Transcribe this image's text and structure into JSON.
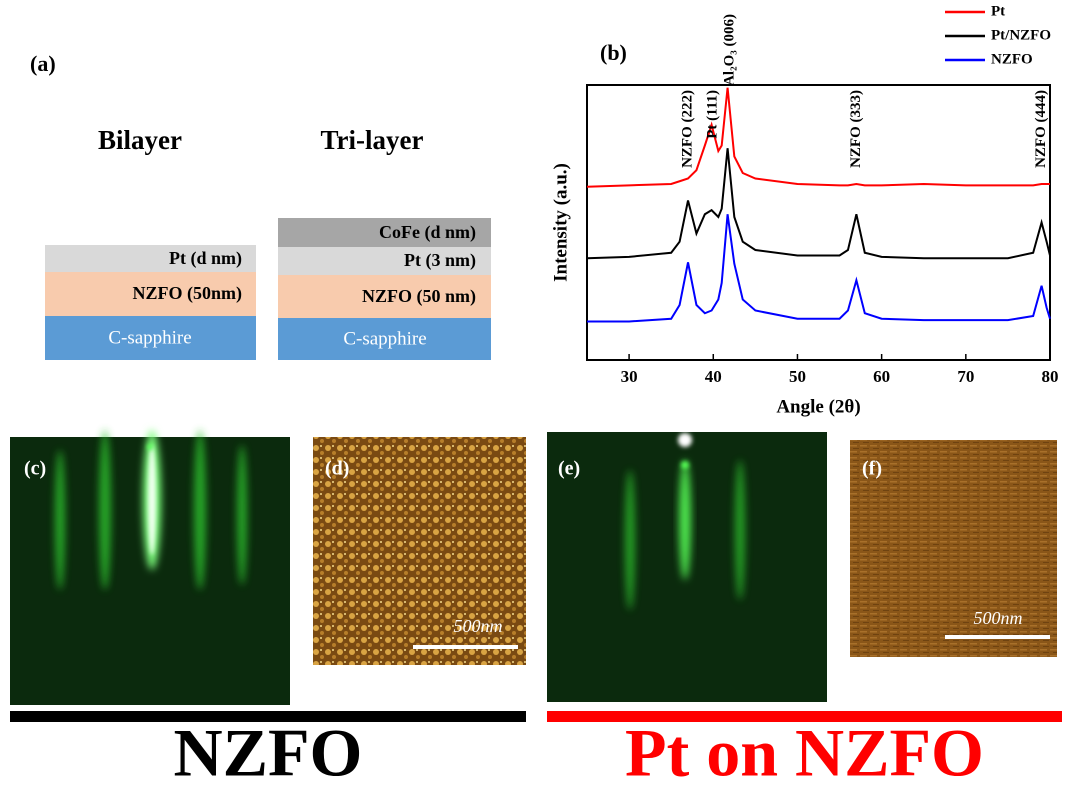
{
  "panel_a": {
    "label": "(a)",
    "bilayer": {
      "title": "Bilayer",
      "layers": [
        "Pt (d nm)",
        "NZFO (50nm)",
        "C-sapphire"
      ]
    },
    "trilayer": {
      "title": "Tri-layer",
      "layers": [
        "CoFe (d nm)",
        "Pt (3 nm)",
        "NZFO (50 nm)",
        "C-sapphire"
      ]
    }
  },
  "chart_data": {
    "type": "line",
    "label": "(b)",
    "x_label": "Angle (2θ)",
    "y_label": "Intensity (a.u.)",
    "x": [
      25,
      30,
      35,
      36,
      37,
      38,
      39,
      39.8,
      40.6,
      41,
      41.7,
      42.5,
      43.5,
      45,
      50,
      55,
      56,
      57,
      58,
      60,
      65,
      70,
      75,
      78,
      79,
      79.6,
      80
    ],
    "series": [
      {
        "name": "Pt",
        "color": "#ff0000",
        "values": [
          6.3,
          6.35,
          6.4,
          6.5,
          6.6,
          6.9,
          7.8,
          8.55,
          7.6,
          7.8,
          9.9,
          7.4,
          6.8,
          6.6,
          6.4,
          6.35,
          6.35,
          6.4,
          6.35,
          6.35,
          6.4,
          6.35,
          6.35,
          6.35,
          6.4,
          6.4,
          6.4
        ]
      },
      {
        "name": "Pt/NZFO",
        "color": "#000000",
        "values": [
          3.7,
          3.75,
          3.9,
          4.3,
          5.8,
          4.6,
          5.3,
          5.45,
          5.2,
          5.5,
          7.7,
          5.2,
          4.3,
          4.0,
          3.8,
          3.8,
          4.0,
          5.3,
          3.9,
          3.75,
          3.7,
          3.7,
          3.7,
          3.9,
          5.0,
          4.3,
          3.8
        ]
      },
      {
        "name": "NZFO",
        "color": "#0000ff",
        "values": [
          1.4,
          1.4,
          1.5,
          2.0,
          3.55,
          2.0,
          1.7,
          1.8,
          2.2,
          2.8,
          5.3,
          3.5,
          2.2,
          1.8,
          1.5,
          1.5,
          1.8,
          2.9,
          1.7,
          1.5,
          1.45,
          1.45,
          1.45,
          1.6,
          2.7,
          1.9,
          1.5
        ]
      }
    ],
    "xlim": [
      25,
      80
    ],
    "xticks": [
      30,
      40,
      50,
      60,
      70,
      80
    ],
    "ylim": [
      0,
      10
    ],
    "legend": "upper right",
    "annotations": [
      {
        "text": "NZFO (222)",
        "x": 37
      },
      {
        "text": "Pt (111)",
        "x": 40
      },
      {
        "text": "Al₂O₃ (006)",
        "x": 42
      },
      {
        "text": "NZFO (333)",
        "x": 57
      },
      {
        "text": "NZFO (444)",
        "x": 79
      }
    ]
  },
  "images": [
    {
      "label": "(c)"
    },
    {
      "label": "(d)",
      "scale_bar": "500nm"
    },
    {
      "label": "(e)"
    },
    {
      "label": "(f)",
      "scale_bar": "500nm"
    }
  ],
  "groups": [
    {
      "label": "NZFO",
      "color": "#000000"
    },
    {
      "label": "Pt on NZFO",
      "color": "#ff0000"
    }
  ]
}
